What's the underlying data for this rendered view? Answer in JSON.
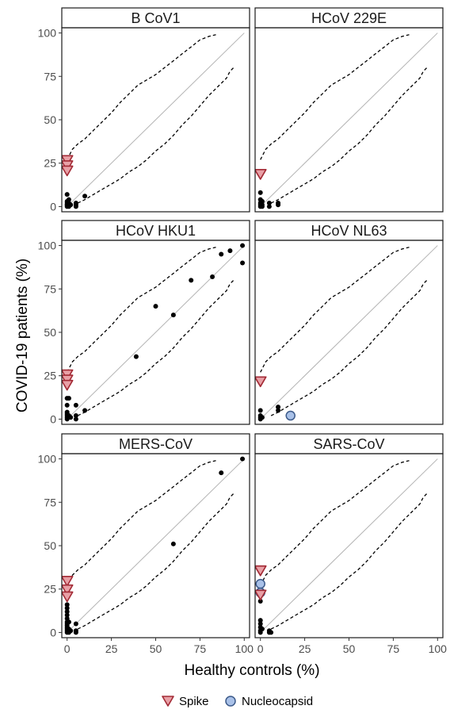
{
  "chart_data": {
    "type": "scatter",
    "xlabel": "Healthy controls (%)",
    "ylabel": "COVID-19 patients (%)",
    "xlim": [
      -3,
      103
    ],
    "ylim": [
      -3,
      103
    ],
    "ticks": [
      0,
      25,
      50,
      75,
      100
    ],
    "grid": false,
    "legend_position": "bottom",
    "reference_line": "y = x",
    "colors": {
      "spike_fill": "#e8a0a6",
      "spike_stroke": "#a32a35",
      "nucleocapsid_fill": "#a9c1e8",
      "nucleocapsid_stroke": "#3c5a8a",
      "other_points": "#000000",
      "identity_line": "#b3b3b3",
      "bound_lines": "#000000"
    },
    "legend": [
      {
        "label": "Spike",
        "shape": "triangle-down",
        "color_key": "spike"
      },
      {
        "label": "Nucleocapsid",
        "shape": "circle",
        "color_key": "nucleocapsid"
      }
    ],
    "bounds": {
      "upper": [
        [
          0,
          27
        ],
        [
          3,
          33
        ],
        [
          6,
          36
        ],
        [
          10,
          39
        ],
        [
          15,
          44
        ],
        [
          20,
          49
        ],
        [
          25,
          54
        ],
        [
          30,
          60
        ],
        [
          35,
          65
        ],
        [
          40,
          70
        ],
        [
          45,
          73
        ],
        [
          50,
          76
        ],
        [
          55,
          80
        ],
        [
          60,
          84
        ],
        [
          65,
          88
        ],
        [
          70,
          92
        ],
        [
          75,
          96
        ],
        [
          80,
          98
        ],
        [
          84,
          99
        ]
      ],
      "lower": [
        [
          6,
          2
        ],
        [
          10,
          4
        ],
        [
          15,
          7
        ],
        [
          20,
          10
        ],
        [
          25,
          13
        ],
        [
          30,
          16
        ],
        [
          35,
          20
        ],
        [
          40,
          23
        ],
        [
          45,
          27
        ],
        [
          50,
          32
        ],
        [
          55,
          36
        ],
        [
          60,
          41
        ],
        [
          65,
          47
        ],
        [
          70,
          52
        ],
        [
          75,
          58
        ],
        [
          80,
          64
        ],
        [
          85,
          69
        ],
        [
          90,
          74
        ],
        [
          92,
          78
        ],
        [
          94,
          80
        ]
      ]
    },
    "panels": [
      {
        "title": "B CoV1",
        "spike": [
          [
            0,
            27
          ],
          [
            0,
            24
          ],
          [
            0,
            21
          ]
        ],
        "nucleocapsid": [],
        "other": [
          [
            0,
            7
          ],
          [
            0,
            3
          ],
          [
            0,
            2
          ],
          [
            0,
            1
          ],
          [
            0,
            1
          ],
          [
            0,
            0
          ],
          [
            1,
            4
          ],
          [
            1,
            2
          ],
          [
            1,
            1
          ],
          [
            1,
            0
          ],
          [
            2,
            1
          ],
          [
            5,
            1
          ],
          [
            5,
            0
          ],
          [
            5,
            2
          ],
          [
            10,
            6
          ]
        ]
      },
      {
        "title": "HCoV 229E",
        "spike": [
          [
            0,
            19
          ],
          [
            0,
            19
          ]
        ],
        "nucleocapsid": [],
        "other": [
          [
            0,
            8
          ],
          [
            0,
            4
          ],
          [
            0,
            2
          ],
          [
            0,
            1
          ],
          [
            0,
            0
          ],
          [
            1,
            3
          ],
          [
            1,
            1
          ],
          [
            1,
            0
          ],
          [
            5,
            2
          ],
          [
            5,
            0
          ],
          [
            10,
            2
          ],
          [
            10,
            1
          ]
        ]
      },
      {
        "title": "HCoV HKU1",
        "spike": [
          [
            0,
            26
          ],
          [
            0,
            23
          ],
          [
            0,
            20
          ]
        ],
        "nucleocapsid": [],
        "other": [
          [
            0,
            12
          ],
          [
            0,
            8
          ],
          [
            0,
            4
          ],
          [
            0,
            3
          ],
          [
            0,
            2
          ],
          [
            0,
            1
          ],
          [
            0,
            0
          ],
          [
            1,
            12
          ],
          [
            1,
            2
          ],
          [
            2,
            1
          ],
          [
            5,
            8
          ],
          [
            5,
            2
          ],
          [
            5,
            0
          ],
          [
            10,
            5
          ],
          [
            39,
            36
          ],
          [
            50,
            65
          ],
          [
            60,
            60
          ],
          [
            70,
            80
          ],
          [
            82,
            82
          ],
          [
            87,
            95
          ],
          [
            92,
            97
          ],
          [
            99,
            100
          ],
          [
            99,
            90
          ]
        ]
      },
      {
        "title": "HCoV NL63",
        "spike": [
          [
            0,
            22
          ],
          [
            0,
            22
          ]
        ],
        "nucleocapsid": [
          [
            17,
            2
          ]
        ],
        "other": [
          [
            0,
            5
          ],
          [
            0,
            2
          ],
          [
            0,
            1
          ],
          [
            0,
            0
          ],
          [
            1,
            1
          ],
          [
            10,
            7
          ],
          [
            10,
            5
          ]
        ]
      },
      {
        "title": "MERS-CoV",
        "spike": [
          [
            0,
            30
          ],
          [
            0,
            25
          ],
          [
            0,
            21
          ]
        ],
        "nucleocapsid": [],
        "other": [
          [
            0,
            16
          ],
          [
            0,
            14
          ],
          [
            0,
            12
          ],
          [
            0,
            10
          ],
          [
            0,
            8
          ],
          [
            0,
            6
          ],
          [
            0,
            5
          ],
          [
            0,
            4
          ],
          [
            0,
            3
          ],
          [
            0,
            2
          ],
          [
            0,
            1
          ],
          [
            0,
            0
          ],
          [
            1,
            6
          ],
          [
            1,
            2
          ],
          [
            1,
            0
          ],
          [
            2,
            1
          ],
          [
            5,
            5
          ],
          [
            5,
            1
          ],
          [
            5,
            0
          ],
          [
            60,
            51
          ],
          [
            87,
            92
          ],
          [
            99,
            100
          ]
        ]
      },
      {
        "title": "SARS-CoV",
        "spike": [
          [
            0,
            36
          ],
          [
            0,
            36
          ],
          [
            0,
            22
          ]
        ],
        "nucleocapsid": [
          [
            0,
            28
          ],
          [
            0,
            23
          ]
        ],
        "other": [
          [
            0,
            18
          ],
          [
            0,
            7
          ],
          [
            0,
            5
          ],
          [
            0,
            3
          ],
          [
            0,
            1
          ],
          [
            0,
            0
          ],
          [
            1,
            2
          ],
          [
            5,
            1
          ],
          [
            5,
            0
          ],
          [
            6,
            0
          ]
        ]
      }
    ]
  }
}
